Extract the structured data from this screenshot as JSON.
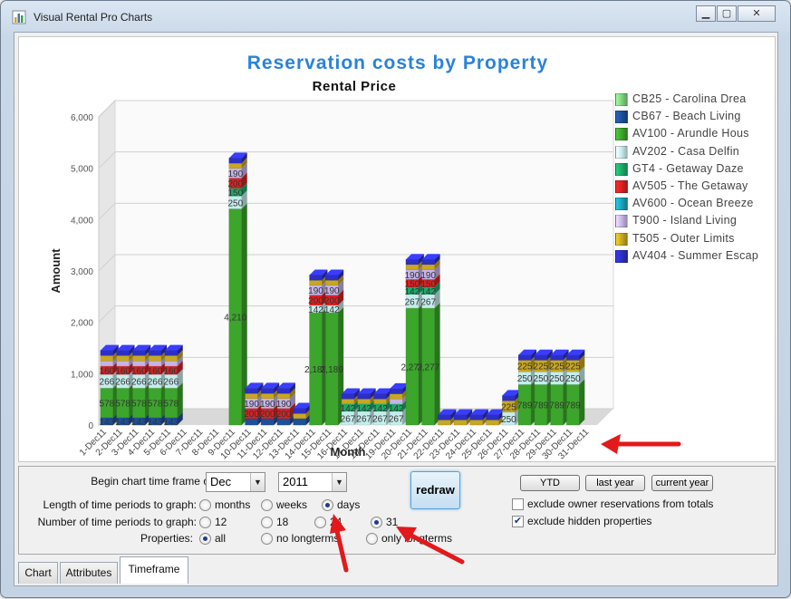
{
  "window": {
    "title": "Visual Rental Pro Charts",
    "buttons": [
      "minimize",
      "maximize",
      "close"
    ]
  },
  "chart": {
    "title": "Reservation costs by Property",
    "subtitle": "Rental Price"
  },
  "chart_data": {
    "type": "bar",
    "stacked": true,
    "three_d": true,
    "title": "Reservation costs by Property",
    "subtitle": "Rental Price",
    "xlabel": "Month",
    "ylabel": "Amount",
    "ylim": [
      0,
      6000
    ],
    "yticks": [
      "0",
      "1,000",
      "2,000",
      "3,000",
      "4,000",
      "5,000",
      "6,000"
    ],
    "grid": true,
    "legend_position": "right",
    "categories": [
      "1-Dec11",
      "2-Dec11",
      "3-Dec11",
      "4-Dec11",
      "5-Dec11",
      "6-Dec11",
      "7-Dec11",
      "8-Dec11",
      "9-Dec11",
      "10-Dec11",
      "11-Dec11",
      "12-Dec11",
      "13-Dec11",
      "14-Dec11",
      "15-Dec11",
      "16-Dec11",
      "17-Dec11",
      "18-Dec11",
      "19-Dec11",
      "20-Dec11",
      "21-Dec11",
      "22-Dec11",
      "23-Dec11",
      "24-Dec11",
      "25-Dec11",
      "26-Dec11",
      "27-Dec11",
      "28-Dec11",
      "29-Dec11",
      "30-Dec11",
      "31-Dec11"
    ],
    "series": [
      {
        "name": "CB25 - Carolina Drea",
        "color": "#7fd37f",
        "values": [
          0,
          0,
          0,
          0,
          0,
          0,
          0,
          0,
          0,
          0,
          0,
          0,
          0,
          0,
          0,
          0,
          0,
          0,
          0,
          0,
          0,
          0,
          0,
          0,
          0,
          0,
          0,
          0,
          0,
          0,
          0
        ]
      },
      {
        "name": "CB67 - Beach Living",
        "color": "#1e4f99",
        "values": [
          143,
          143,
          143,
          143,
          143,
          0,
          0,
          0,
          0,
          126,
          126,
          126,
          126,
          0,
          0,
          0,
          0,
          0,
          0,
          0,
          0,
          0,
          0,
          0,
          0,
          0,
          0,
          0,
          0,
          0,
          0
        ]
      },
      {
        "name": "AV100 - Arundle Hous",
        "color": "#3ca52c",
        "values": [
          578,
          578,
          578,
          578,
          578,
          0,
          0,
          0,
          4210,
          0,
          0,
          0,
          0,
          2189,
          2189,
          0,
          0,
          0,
          0,
          2277,
          2277,
          0,
          0,
          0,
          0,
          0,
          789,
          789,
          789,
          789,
          0
        ]
      },
      {
        "name": "AV202 - Casa Delfin",
        "color": "#c6ecec",
        "values": [
          266,
          266,
          266,
          266,
          266,
          0,
          0,
          0,
          250,
          0,
          0,
          0,
          0,
          142,
          142,
          267,
          267,
          267,
          267,
          267,
          267,
          0,
          0,
          0,
          0,
          250,
          250,
          250,
          250,
          250,
          0
        ]
      },
      {
        "name": "GT4 - Getaway Daze",
        "color": "#1fa868",
        "values": [
          0,
          0,
          0,
          0,
          0,
          0,
          0,
          0,
          150,
          0,
          0,
          0,
          0,
          0,
          0,
          142,
          142,
          142,
          142,
          142,
          142,
          0,
          0,
          0,
          0,
          0,
          0,
          0,
          0,
          0,
          0
        ]
      },
      {
        "name": "AV505 - The Getaway",
        "color": "#d92121",
        "values": [
          160,
          160,
          160,
          160,
          160,
          0,
          0,
          0,
          200,
          200,
          200,
          200,
          0,
          200,
          200,
          0,
          0,
          0,
          0,
          150,
          150,
          0,
          0,
          0,
          0,
          0,
          0,
          0,
          0,
          0,
          0
        ]
      },
      {
        "name": "AV600 - Ocean Breeze",
        "color": "#1ba3b8",
        "values": [
          0,
          0,
          0,
          0,
          0,
          0,
          0,
          0,
          0,
          0,
          0,
          0,
          0,
          0,
          0,
          0,
          0,
          0,
          0,
          0,
          0,
          0,
          0,
          0,
          0,
          0,
          0,
          0,
          0,
          0,
          0
        ]
      },
      {
        "name": "T900 - Island Living",
        "color": "#c5b4e8",
        "values": [
          100,
          100,
          100,
          100,
          100,
          0,
          0,
          0,
          190,
          190,
          190,
          190,
          0,
          190,
          190,
          0,
          0,
          0,
          100,
          190,
          190,
          0,
          0,
          0,
          0,
          0,
          0,
          0,
          0,
          0,
          0
        ]
      },
      {
        "name": "T505 - Outer Limits",
        "color": "#c8a721",
        "values": [
          107,
          107,
          107,
          107,
          107,
          0,
          0,
          0,
          100,
          100,
          100,
          100,
          100,
          100,
          100,
          100,
          100,
          100,
          100,
          100,
          100,
          100,
          100,
          100,
          100,
          225,
          225,
          225,
          225,
          225,
          0
        ]
      },
      {
        "name": "AV404 - Summer Escap",
        "color": "#2c2fc4",
        "values": [
          100,
          100,
          100,
          100,
          100,
          0,
          0,
          0,
          100,
          100,
          100,
          100,
          100,
          100,
          100,
          100,
          100,
          100,
          100,
          100,
          100,
          100,
          100,
          100,
          100,
          100,
          100,
          100,
          100,
          100,
          0
        ]
      }
    ]
  },
  "controls": {
    "begin_label": "Begin chart time frame on:",
    "begin_month": "Dec",
    "begin_year": "2011",
    "length_label": "Length of time periods to graph:",
    "length_options": [
      "months",
      "weeks",
      "days"
    ],
    "length_selected": "days",
    "number_label": "Number of time periods to graph:",
    "number_options": [
      "12",
      "18",
      "24",
      "31"
    ],
    "number_selected": "31",
    "properties_label": "Properties:",
    "properties_options": [
      "all",
      "no longterms",
      "only longterms"
    ],
    "properties_selected": "all",
    "redraw_label": "redraw",
    "ytd_label": "YTD",
    "last_year_label": "last year",
    "current_year_label": "current year",
    "exclude_owner_label": "exclude owner reservations from totals",
    "exclude_owner_checked": false,
    "exclude_hidden_label": "exclude hidden properties",
    "exclude_hidden_checked": true
  },
  "tabs": [
    {
      "label": "Chart",
      "active": false
    },
    {
      "label": "Attributes",
      "active": false
    },
    {
      "label": "Timeframe",
      "active": true
    }
  ],
  "colors": {
    "accent": "#2a82da",
    "annotation_arrow": "#e3191c"
  }
}
